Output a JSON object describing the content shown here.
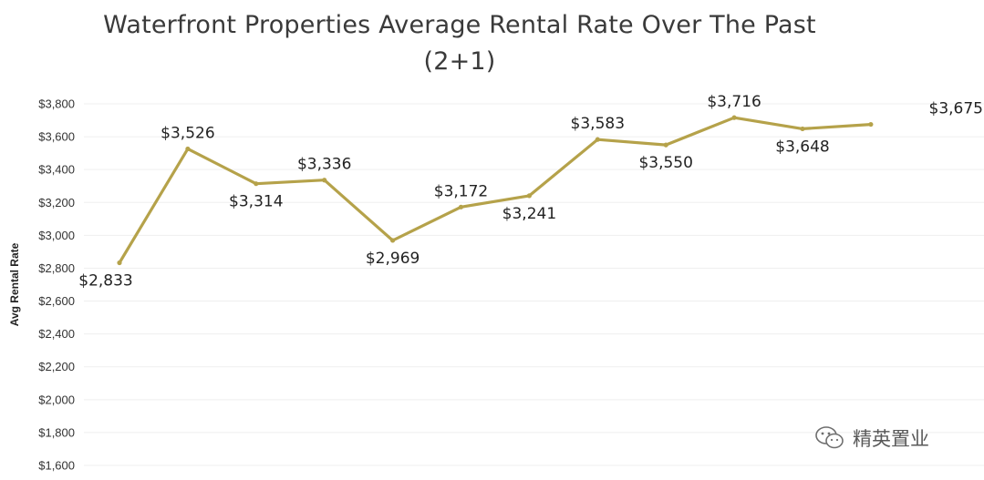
{
  "chart_data": {
    "type": "line",
    "title_line1": "Waterfront Properties Average Rental Rate Over The Past",
    "title_line2": "(2+1)",
    "ylabel": "Avg Rental Rate",
    "ylim": [
      1600,
      3800
    ],
    "y_ticks": [
      "$3,800",
      "$3,600",
      "$3,400",
      "$3,200",
      "$3,000",
      "$2,800",
      "$2,600",
      "$2,400",
      "$2,200",
      "$2,000",
      "$1,800",
      "$1,600"
    ],
    "y_tick_values": [
      3800,
      3600,
      3400,
      3200,
      3000,
      2800,
      2600,
      2400,
      2200,
      2000,
      1800,
      1600
    ],
    "grid": true,
    "series": [
      {
        "values": [
          2833,
          3526,
          3314,
          3336,
          2969,
          3172,
          3241,
          3583,
          3550,
          3716,
          3648,
          3675
        ],
        "labels": [
          "$2,833",
          "$3,526",
          "$3,314",
          "$3,336",
          "$2,969",
          "$3,172",
          "$3,241",
          "$3,583",
          "$3,550",
          "$3,716",
          "$3,648",
          "$3,675"
        ],
        "label_position": [
          "below",
          "above",
          "below",
          "above",
          "below",
          "above",
          "below",
          "above",
          "below",
          "above",
          "below",
          "above"
        ]
      }
    ],
    "line_color": "#b5a24a"
  },
  "watermark": {
    "text": "精英置业",
    "icon": "wechat-icon"
  }
}
